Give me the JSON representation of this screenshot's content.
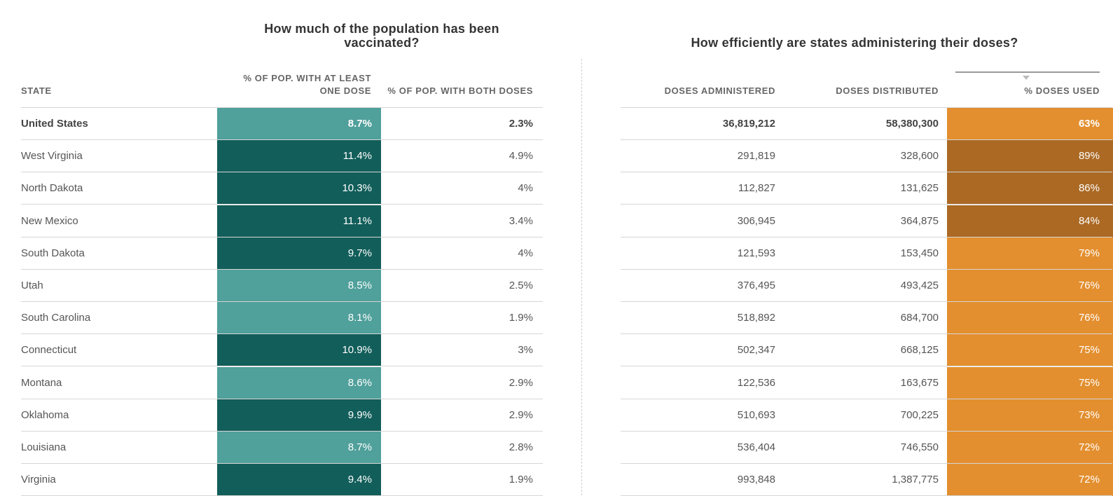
{
  "left_title": "How much of the population has been vaccinated?",
  "right_title": "How efficiently are states administering their doses?",
  "colors": {
    "teal_high": "#125e5a",
    "teal_low": "#50a09b",
    "orange_high": "#ab6924",
    "orange_low": "#e38f2f"
  },
  "chart_data": {
    "type": "table",
    "columns": [
      "STATE",
      "% OF POP. WITH AT LEAST ONE DOSE",
      "% OF POP. WITH BOTH DOSES",
      "DOSES ADMINISTERED",
      "DOSES DISTRIBUTED",
      "% DOSES USED"
    ],
    "sorted_by": "% DOSES USED",
    "rows": [
      {
        "state": "United States",
        "one_dose": "8.7%",
        "both_doses": "2.3%",
        "administered": "36,819,212",
        "distributed": "58,380,300",
        "used": "63%",
        "one_dose_shade": "low",
        "used_shade": "low"
      },
      {
        "state": "West Virginia",
        "one_dose": "11.4%",
        "both_doses": "4.9%",
        "administered": "291,819",
        "distributed": "328,600",
        "used": "89%",
        "one_dose_shade": "high",
        "used_shade": "high"
      },
      {
        "state": "North Dakota",
        "one_dose": "10.3%",
        "both_doses": "4%",
        "administered": "112,827",
        "distributed": "131,625",
        "used": "86%",
        "one_dose_shade": "high",
        "used_shade": "high"
      },
      {
        "state": "New Mexico",
        "one_dose": "11.1%",
        "both_doses": "3.4%",
        "administered": "306,945",
        "distributed": "364,875",
        "used": "84%",
        "one_dose_shade": "high",
        "used_shade": "high"
      },
      {
        "state": "South Dakota",
        "one_dose": "9.7%",
        "both_doses": "4%",
        "administered": "121,593",
        "distributed": "153,450",
        "used": "79%",
        "one_dose_shade": "high",
        "used_shade": "low"
      },
      {
        "state": "Utah",
        "one_dose": "8.5%",
        "both_doses": "2.5%",
        "administered": "376,495",
        "distributed": "493,425",
        "used": "76%",
        "one_dose_shade": "low",
        "used_shade": "low"
      },
      {
        "state": "South Carolina",
        "one_dose": "8.1%",
        "both_doses": "1.9%",
        "administered": "518,892",
        "distributed": "684,700",
        "used": "76%",
        "one_dose_shade": "low",
        "used_shade": "low"
      },
      {
        "state": "Connecticut",
        "one_dose": "10.9%",
        "both_doses": "3%",
        "administered": "502,347",
        "distributed": "668,125",
        "used": "75%",
        "one_dose_shade": "high",
        "used_shade": "low"
      },
      {
        "state": "Montana",
        "one_dose": "8.6%",
        "both_doses": "2.9%",
        "administered": "122,536",
        "distributed": "163,675",
        "used": "75%",
        "one_dose_shade": "low",
        "used_shade": "low"
      },
      {
        "state": "Oklahoma",
        "one_dose": "9.9%",
        "both_doses": "2.9%",
        "administered": "510,693",
        "distributed": "700,225",
        "used": "73%",
        "one_dose_shade": "high",
        "used_shade": "low"
      },
      {
        "state": "Louisiana",
        "one_dose": "8.7%",
        "both_doses": "2.8%",
        "administered": "536,404",
        "distributed": "746,550",
        "used": "72%",
        "one_dose_shade": "low",
        "used_shade": "low"
      },
      {
        "state": "Virginia",
        "one_dose": "9.4%",
        "both_doses": "1.9%",
        "administered": "993,848",
        "distributed": "1,387,775",
        "used": "72%",
        "one_dose_shade": "high",
        "used_shade": "low"
      }
    ]
  }
}
